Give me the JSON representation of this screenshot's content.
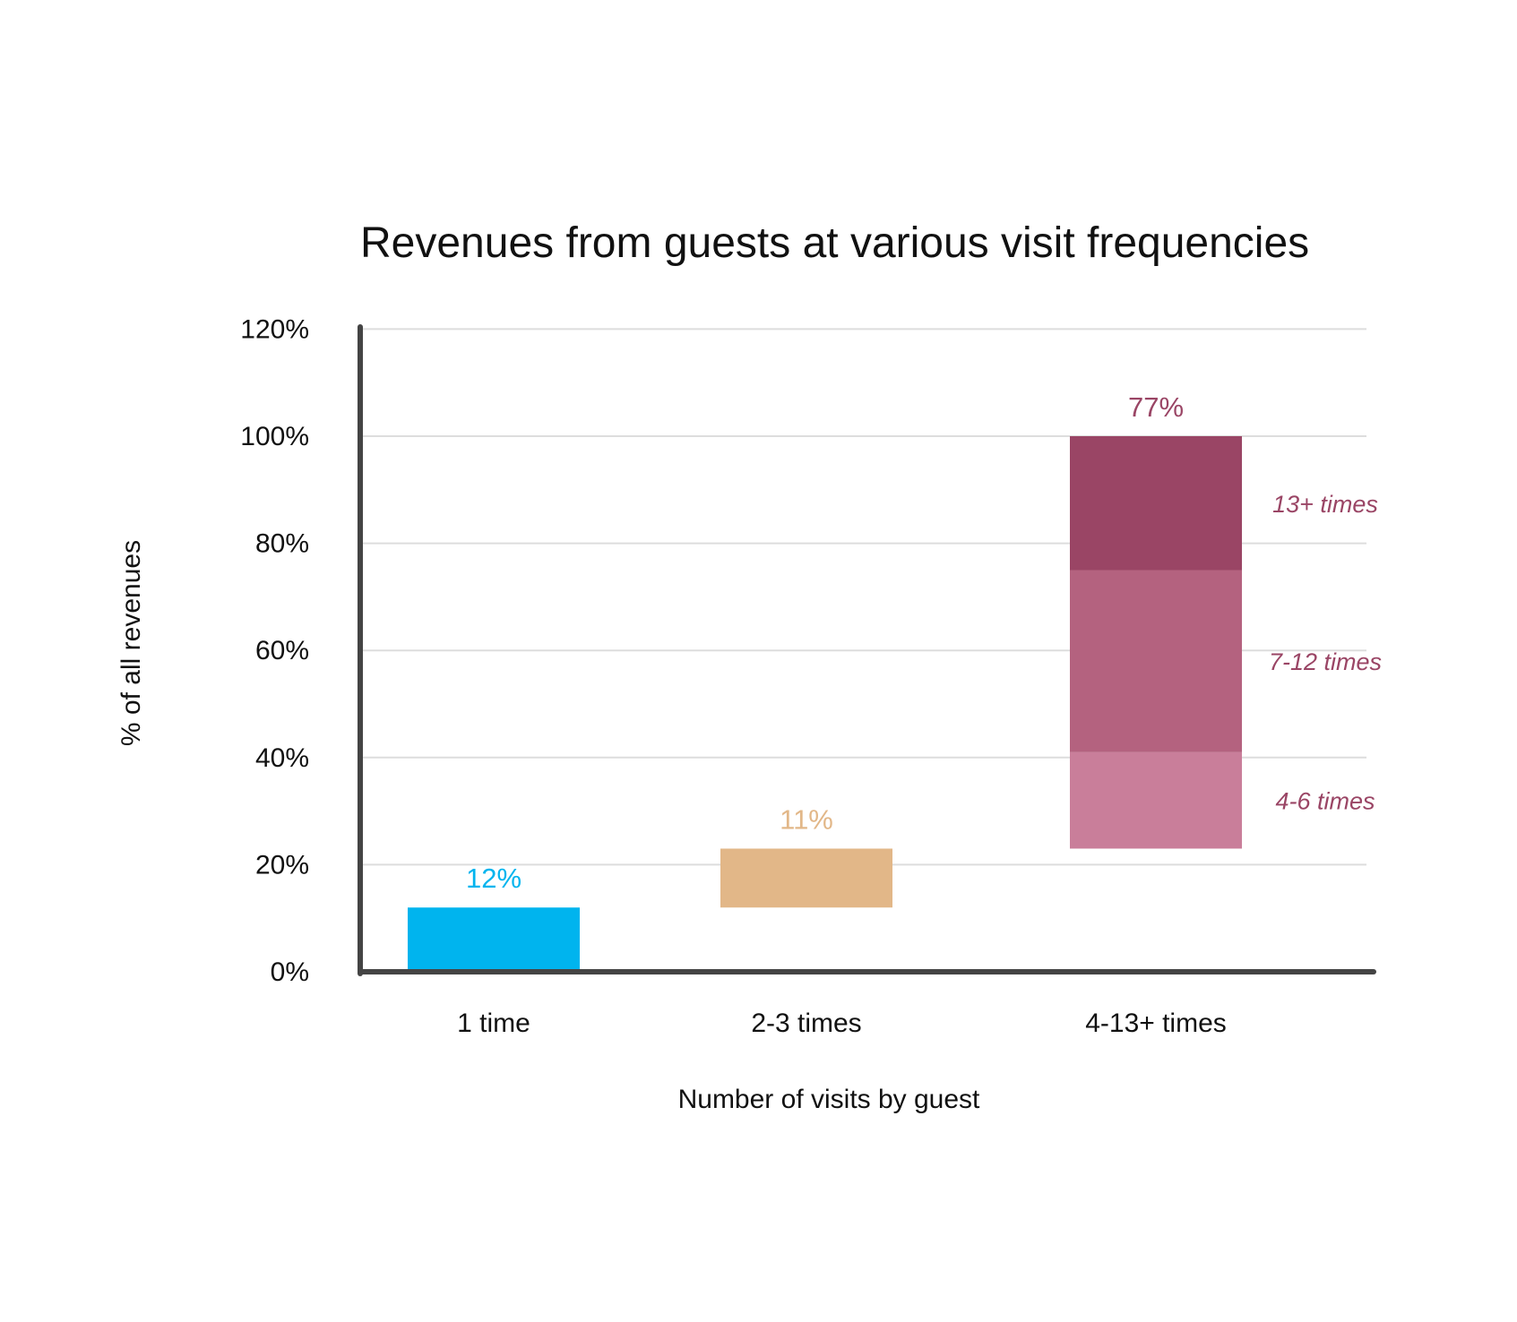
{
  "chart_data": {
    "type": "bar",
    "subtype": "waterfall",
    "title": "Revenues from guests at various visit frequencies",
    "xlabel": "Number of visits by guest",
    "ylabel": "% of all revenues",
    "ylim": [
      0,
      130
    ],
    "yticks": [
      {
        "value": 0,
        "label": "0%"
      },
      {
        "value": 20,
        "label": "20%"
      },
      {
        "value": 40,
        "label": "40%"
      },
      {
        "value": 60,
        "label": "60%"
      },
      {
        "value": 80,
        "label": "80%"
      },
      {
        "value": 100,
        "label": "100%"
      },
      {
        "value": 120,
        "label": "120%"
      }
    ],
    "grid": true,
    "categories": [
      "1 time",
      "2-3 times",
      "4-13+ times"
    ],
    "bars": [
      {
        "category": "1 time",
        "start": 0,
        "end": 12,
        "label": "12%",
        "color": "#00b4ee"
      },
      {
        "category": "2-3 times",
        "start": 12,
        "end": 23,
        "label": "11%",
        "color": "#e2b788"
      },
      {
        "category": "4-13+ times",
        "start": 23,
        "end": 100,
        "label": "77%",
        "color": "#9a4565",
        "segments": [
          {
            "name": "4-6 times",
            "start": 23,
            "end": 41,
            "color": "#c97e9a"
          },
          {
            "name": "7-12 times",
            "start": 41,
            "end": 75,
            "color": "#b4627f"
          },
          {
            "name": "13+ times",
            "start": 75,
            "end": 100,
            "color": "#9a4565"
          }
        ]
      }
    ],
    "colors": {
      "axis": "#444444",
      "grid": "#dddddd",
      "segment_label": "#9a4565"
    }
  }
}
